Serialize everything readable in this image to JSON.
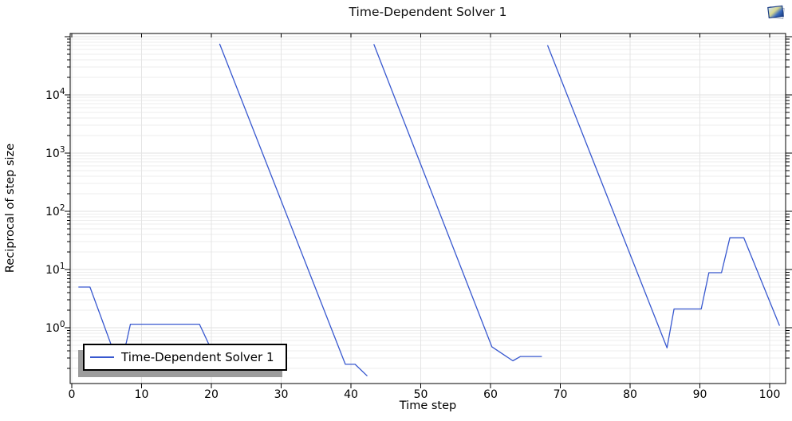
{
  "title": "Time-Dependent Solver 1",
  "icons": {
    "top_right": "plot-snapshot-icon"
  },
  "colors": {
    "series_blue": "#3858cf",
    "grid_minor": "#eeeeee",
    "grid_major": "#e0e0e0",
    "grid_vertical": "#e4e4e4",
    "axis": "#000000",
    "legend_shadow": "#9c9c9c",
    "icon_dark_blue": "#1d3f86",
    "icon_light_blue": "#cfe4f7"
  },
  "chart_data": {
    "type": "line",
    "title": "Time-Dependent Solver 1",
    "xlabel": "Time step",
    "ylabel": "Reciprocal of step size",
    "grid": true,
    "x_axis": {
      "min": -0.23,
      "max": 102.29,
      "ticks": [
        0,
        10,
        20,
        30,
        40,
        50,
        60,
        70,
        80,
        90,
        100
      ]
    },
    "y_axis": {
      "scale": "log",
      "min": 0.11,
      "max": 113000,
      "labeled_decades": [
        0,
        1,
        2,
        3,
        4
      ],
      "tick_decades": [
        0,
        1,
        2,
        3,
        4,
        5
      ],
      "minor_multiples": [
        2,
        3,
        4,
        5,
        6,
        7,
        8,
        9
      ]
    },
    "legend": {
      "position": "bottom-left",
      "entries": [
        {
          "label": "Time-Dependent Solver 1",
          "color": "#3858cf"
        }
      ]
    },
    "series": [
      {
        "name": "Time-Dependent Solver 1",
        "color": "#3858cf",
        "segments": [
          [
            [
              1,
              5
            ],
            [
              2.6,
              5
            ],
            [
              5.8,
              0.45
            ],
            [
              6.8,
              0.3
            ],
            [
              7.8,
              0.55
            ],
            [
              8.4,
              1.15
            ],
            [
              18.3,
              1.15
            ],
            [
              19.7,
              0.5
            ],
            [
              20.8,
              0.3
            ]
          ],
          [
            [
              21.2,
              74000
            ],
            [
              39.2,
              0.235
            ],
            [
              40.6,
              0.235
            ],
            [
              42.3,
              0.15
            ]
          ],
          [
            [
              43.3,
              73000
            ],
            [
              60.2,
              0.47
            ],
            [
              63.2,
              0.27
            ],
            [
              64.3,
              0.32
            ],
            [
              67.3,
              0.32
            ]
          ],
          [
            [
              68.2,
              70000
            ],
            [
              85.3,
              0.45
            ],
            [
              86.3,
              2.1
            ],
            [
              90.2,
              2.1
            ],
            [
              91.3,
              8.8
            ],
            [
              93.1,
              8.8
            ],
            [
              94.3,
              35
            ],
            [
              96.3,
              35
            ],
            [
              101.4,
              1.1
            ]
          ]
        ]
      }
    ]
  }
}
